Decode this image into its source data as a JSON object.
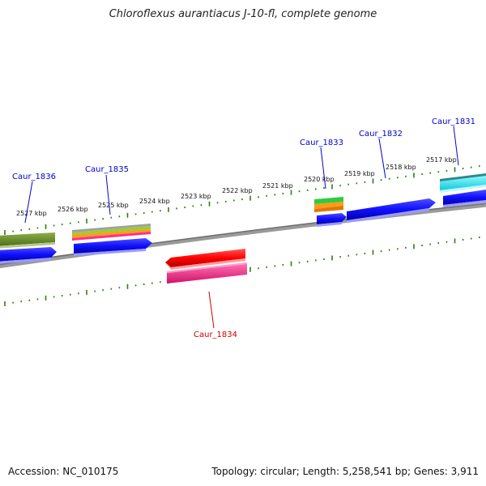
{
  "title": "Chloroflexus aurantiacus J-10-fl, complete genome",
  "footer": {
    "accession": "Accession: NC_010175",
    "stats": "Topology: circular; Length: 5,258,541 bp; Genes: 3,911"
  },
  "scale": {
    "ticks": [
      "2527 kbp",
      "2526 kbp",
      "2525 kbp",
      "2524 kbp",
      "2523 kbp",
      "2522 kbp",
      "2521 kbp",
      "2520 kbp",
      "2519 kbp",
      "2518 kbp",
      "2517 kbp"
    ]
  },
  "genes": [
    {
      "id": "caur-1836",
      "label": "Caur_1836",
      "strand": "plus",
      "color": "#0000cc"
    },
    {
      "id": "caur-1835",
      "label": "Caur_1835",
      "strand": "plus",
      "color": "#0000cc"
    },
    {
      "id": "caur-1834",
      "label": "Caur_1834",
      "strand": "minus",
      "color": "#cc0000"
    },
    {
      "id": "caur-1833",
      "label": "Caur_1833",
      "strand": "plus",
      "color": "#0000cc"
    },
    {
      "id": "caur-1832",
      "label": "Caur_1832",
      "strand": "plus",
      "color": "#0000cc"
    },
    {
      "id": "caur-1831",
      "label": "Caur_1831",
      "strand": "plus",
      "color": "#0000cc"
    }
  ],
  "colors": {
    "backbone": "#8a8a8a",
    "tick": "#2e7d12",
    "cds_plus": "#1414ff",
    "cds_minus": "#ff1a1a",
    "cog_green": "#6b8e23",
    "cog_pink": "#ff2d8a",
    "cog_cyan": "#1ee8f0",
    "cog_orange": "#ff9a1a",
    "cog_lime": "#2ecc40"
  }
}
